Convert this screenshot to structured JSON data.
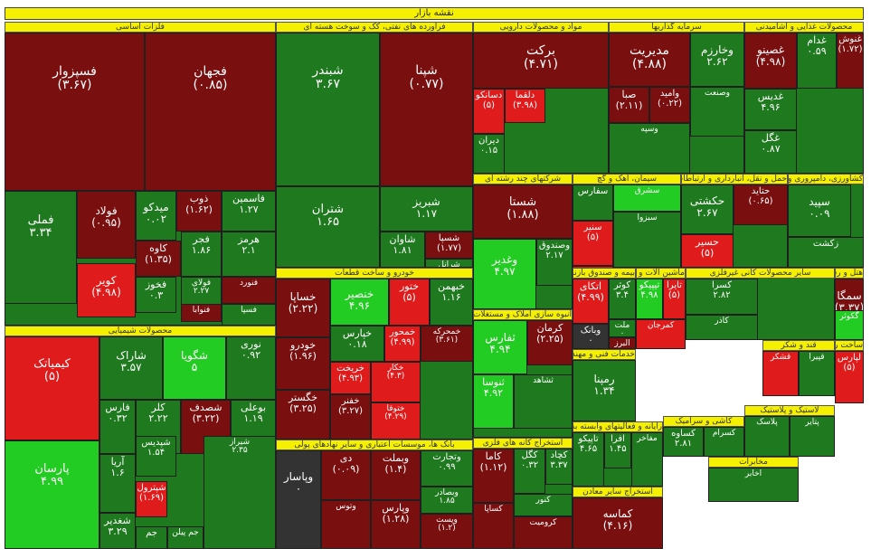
{
  "chart_data": {
    "type": "treemap",
    "title": "نقشه بازار",
    "sectors": [
      {
        "name": "فلزات اساسی",
        "stocks": [
          {
            "name": "فسپزوار",
            "value": "(۳.۶۷)",
            "color": "#7a0f0f"
          },
          {
            "name": "فجهان",
            "value": "(۰.۸۵)",
            "color": "#7a0f0f"
          },
          {
            "name": "فملی",
            "value": "۳.۳۴",
            "color": "#1f7a1f"
          },
          {
            "name": "فولاد",
            "value": "(۰.۹۵)",
            "color": "#7a0f0f"
          },
          {
            "name": "میدکو",
            "value": "۰.۰۲",
            "color": "#1f7a1f"
          },
          {
            "name": "ذوب",
            "value": "(۱.۶۲)",
            "color": "#7a0f0f"
          },
          {
            "name": "فاسمین",
            "value": "۱.۲۷",
            "color": "#1f7a1f"
          },
          {
            "name": "هرمز",
            "value": "۲.۱",
            "color": "#1f7a1f"
          },
          {
            "name": "فخوز",
            "value": "۰.۳",
            "color": "#1f7a1f"
          },
          {
            "name": "کاوه",
            "value": "(۱.۳۵)",
            "color": "#7a0f0f"
          },
          {
            "name": "کویر",
            "value": "(۴.۹۸)",
            "color": "#e01b1b"
          },
          {
            "name": "فجر",
            "value": "۱.۸۶",
            "color": "#1f7a1f"
          },
          {
            "name": "فولای",
            "value": "۲.۲۷",
            "color": "#1f7a1f"
          },
          {
            "name": "فنورد",
            "value": "",
            "color": "#7a0f0f"
          },
          {
            "name": "فنوابا",
            "value": "",
            "color": "#7a0f0f"
          },
          {
            "name": "فسپا",
            "value": "",
            "color": "#1f7a1f"
          }
        ]
      },
      {
        "name": "فرآورده های نفتی، کک و سوخت هسته ای",
        "stocks": [
          {
            "name": "شبندر",
            "value": "۳.۶۷",
            "color": "#1f7a1f"
          },
          {
            "name": "شپنا",
            "value": "(۰.۷۷)",
            "color": "#7a0f0f"
          },
          {
            "name": "شتران",
            "value": "۱.۶۵",
            "color": "#1f7a1f"
          },
          {
            "name": "شبریز",
            "value": "۱.۱۷",
            "color": "#1f7a1f"
          },
          {
            "name": "شاوان",
            "value": "۱.۸۱",
            "color": "#1f7a1f"
          },
          {
            "name": "شسپا",
            "value": "(۱.۷۷)",
            "color": "#7a0f0f"
          },
          {
            "name": "شرانل",
            "value": "",
            "color": "#1f7a1f"
          }
        ]
      },
      {
        "name": "مواد و محصولات دارویی",
        "stocks": [
          {
            "name": "برکت",
            "value": "(۴.۷۱)",
            "color": "#7a0f0f"
          },
          {
            "name": "دسانکو",
            "value": "(۵)",
            "color": "#e01b1b"
          },
          {
            "name": "دیران",
            "value": "۰.۱۵",
            "color": "#1f7a1f"
          },
          {
            "name": "دلقما",
            "value": "(۳.۹۸)",
            "color": "#e01b1b"
          }
        ]
      },
      {
        "name": "سرمایه گذاریها",
        "stocks": [
          {
            "name": "مدیریت",
            "value": "(۴.۸۸)",
            "color": "#7a0f0f"
          },
          {
            "name": "وخارزم",
            "value": "۲.۶۲",
            "color": "#1f7a1f"
          },
          {
            "name": "صبا",
            "value": "(۲.۱۱)",
            "color": "#7a0f0f"
          },
          {
            "name": "وامید",
            "value": "(۰.۲۲)",
            "color": "#7a0f0f"
          },
          {
            "name": "وصنعت",
            "value": "",
            "color": "#1f7a1f"
          },
          {
            "name": "وسپه",
            "value": "",
            "color": "#1f7a1f"
          }
        ]
      },
      {
        "name": "محصولات غذایی و آشامیدنی",
        "stocks": [
          {
            "name": "غصینو",
            "value": "(۴.۹۸)",
            "color": "#7a0f0f"
          },
          {
            "name": "غدام",
            "value": "۰.۵۹",
            "color": "#1f7a1f"
          },
          {
            "name": "غنوش",
            "value": "(۱.۷۲)",
            "color": "#7a0f0f"
          },
          {
            "name": "غدیس",
            "value": "۴.۹۶",
            "color": "#1f7a1f"
          },
          {
            "name": "غگل",
            "value": "۰.۸۷",
            "color": "#1f7a1f"
          }
        ]
      },
      {
        "name": "شرکتهای چند رشته ای",
        "stocks": [
          {
            "name": "شستا",
            "value": "(۱.۸۸)",
            "color": "#7a0f0f"
          },
          {
            "name": "وغدیر",
            "value": "۴.۹۷",
            "color": "#22cc22"
          },
          {
            "name": "وصندوق",
            "value": "۲.۱۷",
            "color": "#1f7a1f"
          }
        ]
      },
      {
        "name": "حمل و نقل، انبارداری و ارتباطات",
        "stocks": [
          {
            "name": "حکشتی",
            "value": "۲.۶۷",
            "color": "#1f7a1f"
          },
          {
            "name": "حتاید",
            "value": "(۰.۶۵)",
            "color": "#7a0f0f"
          },
          {
            "name": "حسیر",
            "value": "(۵)",
            "color": "#e01b1b"
          }
        ]
      },
      {
        "name": "کشاورزی، دامپروری و خدمات وابسته",
        "stocks": [
          {
            "name": "سپید",
            "value": "۰.۰۹",
            "color": "#1f7a1f"
          },
          {
            "name": "زکشت",
            "value": "",
            "color": "#1f7a1f"
          }
        ]
      },
      {
        "name": "سیمان، آهک و گچ",
        "stocks": [
          {
            "name": "سفارس",
            "value": "",
            "color": "#1f7a1f"
          },
          {
            "name": "سشرق",
            "value": "",
            "color": "#22cc22"
          },
          {
            "name": "سنیر",
            "value": "(۵)",
            "color": "#e01b1b"
          },
          {
            "name": "سیتا",
            "value": "",
            "color": "#e01b1b"
          },
          {
            "name": "سبزوا",
            "value": "",
            "color": "#1f7a1f"
          }
        ]
      },
      {
        "name": "هتل و رستوران",
        "stocks": [
          {
            "name": "گدنا",
            "value": "۵",
            "color": "#1f7a1f"
          },
          {
            "name": "سمگا",
            "value": "(۳.۳۷)",
            "color": "#7a0f0f"
          },
          {
            "name": "گکوثر",
            "value": "",
            "color": "#22cc22"
          }
        ]
      },
      {
        "name": "بیمه و صندوق بازنشستگی",
        "stocks": [
          {
            "name": "اتکای",
            "value": "(۴.۹۹)",
            "color": "#e01b1b"
          },
          {
            "name": "وبانک",
            "value": "۰",
            "color": "#333333"
          },
          {
            "name": "کوثر",
            "value": "۳.۴",
            "color": "#1f7a1f"
          },
          {
            "name": "ملت",
            "value": "۰",
            "color": "#1f7a1f"
          },
          {
            "name": "البرز",
            "value": "",
            "color": "#7a0f0f"
          }
        ]
      },
      {
        "name": "ماشین آلات و تجهیزات",
        "stocks": [
          {
            "name": "تیپیکو",
            "value": "۴.۹۸",
            "color": "#22cc22"
          },
          {
            "name": "تایرا",
            "value": "(۵)",
            "color": "#e01b1b"
          },
          {
            "name": "کمرجان",
            "value": "",
            "color": "#e01b1b"
          }
        ]
      },
      {
        "name": "سایر محصولات کانی غیرفلزی",
        "stocks": [
          {
            "name": "کسرا",
            "value": "۲.۸۲",
            "color": "#1f7a1f"
          },
          {
            "name": "کاذر",
            "value": "",
            "color": "#1f7a1f"
          }
        ]
      },
      {
        "name": "خودرو و ساخت قطعات",
        "stocks": [
          {
            "name": "خساپا",
            "value": "(۲.۲۲)",
            "color": "#7a0f0f"
          },
          {
            "name": "خنصیر",
            "value": "۴.۹۶",
            "color": "#22cc22"
          },
          {
            "name": "ختور",
            "value": "(۵)",
            "color": "#e01b1b"
          },
          {
            "name": "خبهمن",
            "value": "۱.۱۶",
            "color": "#1f7a1f"
          },
          {
            "name": "خودرو",
            "value": "(۱.۹۶)",
            "color": "#7a0f0f"
          },
          {
            "name": "خپارس",
            "value": "۰.۱۸",
            "color": "#1f7a1f"
          },
          {
            "name": "خمحور",
            "value": "(۴.۹۹)",
            "color": "#e01b1b"
          },
          {
            "name": "خگستر",
            "value": "(۳.۲۵)",
            "color": "#7a0f0f"
          },
          {
            "name": "خریخت",
            "value": "(۴.۹۳)",
            "color": "#e01b1b"
          },
          {
            "name": "خفنر",
            "value": "(۳.۲۷)",
            "color": "#7a0f0f"
          },
          {
            "name": "خمحرکه",
            "value": "(۳.۶۱)",
            "color": "#7a0f0f"
          },
          {
            "name": "خکار",
            "value": "(۴.۳)",
            "color": "#e01b1b"
          },
          {
            "name": "ختوقا",
            "value": "(۴.۲۹)",
            "color": "#e01b1b"
          }
        ]
      },
      {
        "name": "انبوه سازی املاک و مستغلات",
        "stocks": [
          {
            "name": "ثفارس",
            "value": "۴.۹۴",
            "color": "#22cc22"
          },
          {
            "name": "کرمان",
            "value": "(۲.۲۵)",
            "color": "#7a0f0f"
          },
          {
            "name": "ثنوسا",
            "value": "۴.۹۲",
            "color": "#22cc22"
          },
          {
            "name": "ثشاهد",
            "value": "",
            "color": "#1f7a1f"
          }
        ]
      },
      {
        "name": "محصولات شیمیایی",
        "stocks": [
          {
            "name": "کیمیاتک",
            "value": "(۵)",
            "color": "#e01b1b"
          },
          {
            "name": "شاراک",
            "value": "۳.۵۷",
            "color": "#1f7a1f"
          },
          {
            "name": "شگویا",
            "value": "۵",
            "color": "#22cc22"
          },
          {
            "name": "نوری",
            "value": "۰.۹۲",
            "color": "#1f7a1f"
          },
          {
            "name": "پارسان",
            "value": "۴.۹۹",
            "color": "#22cc22"
          },
          {
            "name": "فارس",
            "value": "۰.۳۲",
            "color": "#1f7a1f"
          },
          {
            "name": "کلر",
            "value": "۲.۲۲",
            "color": "#1f7a1f"
          },
          {
            "name": "شصدف",
            "value": "(۳.۲۲)",
            "color": "#7a0f0f"
          },
          {
            "name": "بوعلی",
            "value": "۱.۱۹",
            "color": "#1f7a1f"
          },
          {
            "name": "آریا",
            "value": "۱.۶",
            "color": "#1f7a1f"
          },
          {
            "name": "شپدیس",
            "value": "۱.۵۴",
            "color": "#1f7a1f"
          },
          {
            "name": "شپترول",
            "value": "(۱.۶۹)",
            "color": "#e01b1b"
          },
          {
            "name": "شغدیر",
            "value": "۳.۲۹",
            "color": "#1f7a1f"
          },
          {
            "name": "جم",
            "value": "",
            "color": "#1f7a1f"
          },
          {
            "name": "جم پیلن",
            "value": "",
            "color": "#1f7a1f"
          },
          {
            "name": "شیراز",
            "value": "۲.۳۵",
            "color": "#1f7a1f"
          }
        ]
      },
      {
        "name": "بانک ها، موسسات اعتباری و سایر نهادهای پولی",
        "stocks": [
          {
            "name": "وپاسار",
            "value": "۰",
            "color": "#333333"
          },
          {
            "name": "دی",
            "value": "(۰.۰۹)",
            "color": "#7a0f0f"
          },
          {
            "name": "وبملت",
            "value": "(۱.۴)",
            "color": "#7a0f0f"
          },
          {
            "name": "وتجارت",
            "value": "۰.۹۹",
            "color": "#1f7a1f"
          },
          {
            "name": "وبصادر",
            "value": "۱.۸۵",
            "color": "#1f7a1f"
          },
          {
            "name": "وپارس",
            "value": "(۱.۲۸)",
            "color": "#7a0f0f"
          },
          {
            "name": "وتوس",
            "value": "",
            "color": "#7a0f0f"
          },
          {
            "name": "وپست",
            "value": "(۱.۲)",
            "color": "#7a0f0f"
          }
        ]
      },
      {
        "name": "استخراج کانه های فلزی",
        "stocks": [
          {
            "name": "کاما",
            "value": "(۱.۱۲)",
            "color": "#7a0f0f"
          },
          {
            "name": "کگل",
            "value": "۰.۳۲",
            "color": "#1f7a1f"
          },
          {
            "name": "کچاد",
            "value": "۳.۳۷",
            "color": "#1f7a1f"
          },
          {
            "name": "کنور",
            "value": "",
            "color": "#1f7a1f"
          },
          {
            "name": "کرومیت",
            "value": "",
            "color": "#7a0f0f"
          },
          {
            "name": "کساپا",
            "value": "",
            "color": "#7a0f0f"
          }
        ]
      },
      {
        "name": "خدمات فنی و مهندسی",
        "stocks": [
          {
            "name": "رمپنا",
            "value": "۱.۳۴",
            "color": "#1f7a1f"
          },
          {
            "name": "وساپا",
            "value": "",
            "color": "#1f7a1f"
          }
        ]
      },
      {
        "name": "رایانه و فعالیتهای وابسته به آن",
        "stocks": [
          {
            "name": "تاپیکو",
            "value": "۴.۶۵",
            "color": "#1f7a1f"
          },
          {
            "name": "افرا",
            "value": "۱.۴۵",
            "color": "#1f7a1f"
          },
          {
            "name": "مفاخر",
            "value": "",
            "color": "#1f7a1f"
          }
        ]
      },
      {
        "name": "استخراج سایر معادن",
        "stocks": [
          {
            "name": "کماسه",
            "value": "(۴.۱۶)",
            "color": "#7a0f0f"
          },
          {
            "name": "کگهر",
            "value": "",
            "color": "#1f7a1f"
          }
        ]
      },
      {
        "name": "قند و شکر",
        "stocks": [
          {
            "name": "قشکر",
            "value": "",
            "color": "#e01b1b"
          },
          {
            "name": "قپیرا",
            "value": "",
            "color": "#1f7a1f"
          }
        ]
      },
      {
        "name": "ساخت رادیو، تلویزیون",
        "stocks": [
          {
            "name": "لپارس",
            "value": "(۵)",
            "color": "#e01b1b"
          }
        ]
      },
      {
        "name": "کاشی و سرامیک",
        "stocks": [
          {
            "name": "کساوه",
            "value": "۲.۸۱",
            "color": "#1f7a1f"
          },
          {
            "name": "کسرام",
            "value": "",
            "color": "#1f7a1f"
          }
        ]
      },
      {
        "name": "لاستیک و پلاستیک",
        "stocks": [
          {
            "name": "پلاسک",
            "value": "",
            "color": "#1f7a1f"
          },
          {
            "name": "پتایر",
            "value": "",
            "color": "#1f7a1f"
          }
        ]
      },
      {
        "name": "مخابرات",
        "stocks": [
          {
            "name": "اخابر",
            "value": "",
            "color": "#1f7a1f"
          }
        ]
      }
    ]
  }
}
